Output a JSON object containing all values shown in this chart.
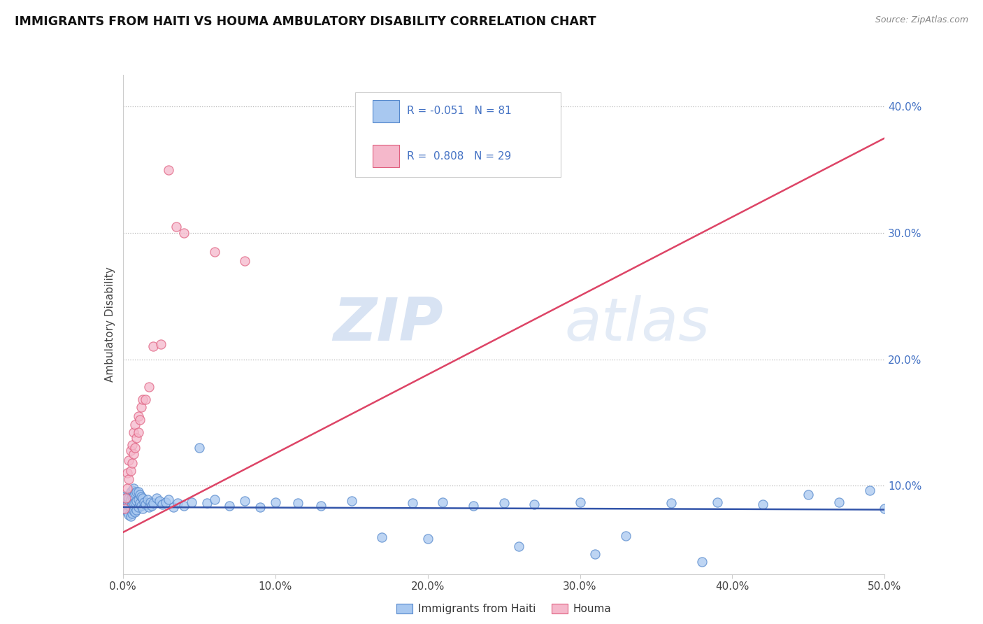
{
  "title": "IMMIGRANTS FROM HAITI VS HOUMA AMBULATORY DISABILITY CORRELATION CHART",
  "source": "Source: ZipAtlas.com",
  "ylabel": "Ambulatory Disability",
  "xlim": [
    0.0,
    0.5
  ],
  "ylim": [
    0.03,
    0.425
  ],
  "x_ticks": [
    0.0,
    0.1,
    0.2,
    0.3,
    0.4,
    0.5
  ],
  "x_tick_labels": [
    "0.0%",
    "10.0%",
    "20.0%",
    "30.0%",
    "40.0%",
    "50.0%"
  ],
  "y_ticks_right": [
    0.1,
    0.2,
    0.3,
    0.4
  ],
  "y_tick_labels_right": [
    "10.0%",
    "20.0%",
    "30.0%",
    "40.0%"
  ],
  "blue_R": -0.051,
  "blue_N": 81,
  "pink_R": 0.808,
  "pink_N": 29,
  "blue_color": "#a8c8f0",
  "pink_color": "#f5b8cb",
  "blue_edge_color": "#5588cc",
  "pink_edge_color": "#e06080",
  "blue_line_color": "#3355aa",
  "pink_line_color": "#dd4466",
  "legend_label_blue": "Immigrants from Haiti",
  "legend_label_pink": "Houma",
  "watermark_zip": "ZIP",
  "watermark_atlas": "atlas",
  "blue_line_y0": 0.083,
  "blue_line_y1": 0.081,
  "pink_line_y0": 0.063,
  "pink_line_y1": 0.375,
  "blue_scatter_x": [
    0.001,
    0.002,
    0.002,
    0.003,
    0.003,
    0.003,
    0.004,
    0.004,
    0.004,
    0.005,
    0.005,
    0.005,
    0.005,
    0.006,
    0.006,
    0.006,
    0.006,
    0.007,
    0.007,
    0.007,
    0.007,
    0.008,
    0.008,
    0.008,
    0.009,
    0.009,
    0.009,
    0.01,
    0.01,
    0.01,
    0.011,
    0.011,
    0.012,
    0.012,
    0.013,
    0.013,
    0.014,
    0.015,
    0.016,
    0.017,
    0.018,
    0.019,
    0.02,
    0.022,
    0.024,
    0.026,
    0.028,
    0.03,
    0.033,
    0.036,
    0.04,
    0.045,
    0.05,
    0.055,
    0.06,
    0.07,
    0.08,
    0.09,
    0.1,
    0.115,
    0.13,
    0.15,
    0.17,
    0.19,
    0.21,
    0.23,
    0.25,
    0.27,
    0.3,
    0.33,
    0.36,
    0.39,
    0.42,
    0.45,
    0.47,
    0.49,
    0.5,
    0.38,
    0.31,
    0.26,
    0.2
  ],
  "blue_scatter_y": [
    0.082,
    0.088,
    0.092,
    0.079,
    0.085,
    0.091,
    0.077,
    0.084,
    0.09,
    0.076,
    0.083,
    0.089,
    0.095,
    0.078,
    0.085,
    0.091,
    0.096,
    0.08,
    0.086,
    0.092,
    0.098,
    0.079,
    0.087,
    0.094,
    0.081,
    0.088,
    0.095,
    0.083,
    0.089,
    0.095,
    0.086,
    0.093,
    0.084,
    0.091,
    0.082,
    0.09,
    0.087,
    0.085,
    0.089,
    0.083,
    0.087,
    0.084,
    0.086,
    0.09,
    0.088,
    0.085,
    0.087,
    0.089,
    0.083,
    0.086,
    0.084,
    0.087,
    0.13,
    0.086,
    0.089,
    0.084,
    0.088,
    0.083,
    0.087,
    0.086,
    0.084,
    0.088,
    0.059,
    0.086,
    0.087,
    0.084,
    0.086,
    0.085,
    0.087,
    0.06,
    0.086,
    0.087,
    0.085,
    0.093,
    0.087,
    0.096,
    0.082,
    0.04,
    0.046,
    0.052,
    0.058
  ],
  "pink_scatter_x": [
    0.001,
    0.002,
    0.003,
    0.003,
    0.004,
    0.004,
    0.005,
    0.005,
    0.006,
    0.006,
    0.007,
    0.007,
    0.008,
    0.008,
    0.009,
    0.01,
    0.01,
    0.011,
    0.012,
    0.013,
    0.015,
    0.017,
    0.02,
    0.025,
    0.03,
    0.035,
    0.04,
    0.06,
    0.08
  ],
  "pink_scatter_y": [
    0.082,
    0.09,
    0.098,
    0.11,
    0.105,
    0.12,
    0.112,
    0.128,
    0.118,
    0.132,
    0.125,
    0.142,
    0.13,
    0.148,
    0.138,
    0.142,
    0.155,
    0.152,
    0.162,
    0.168,
    0.168,
    0.178,
    0.21,
    0.212,
    0.35,
    0.305,
    0.3,
    0.285,
    0.278
  ]
}
